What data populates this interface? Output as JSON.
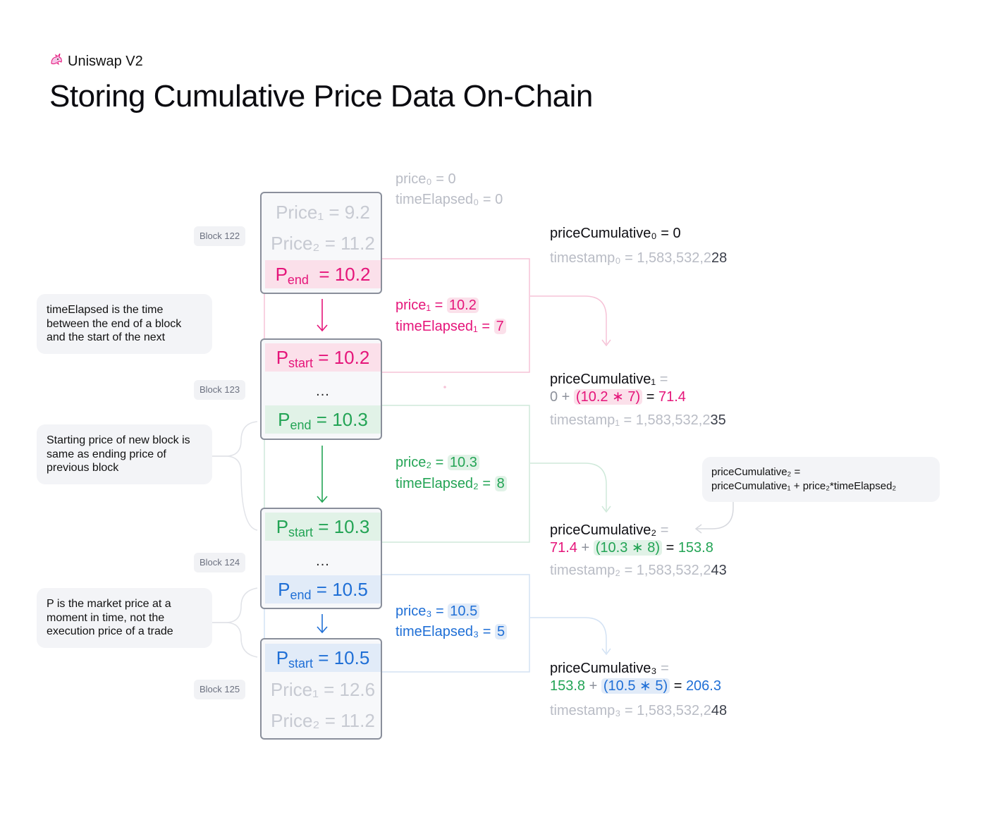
{
  "header": {
    "brand_icon": "unicorn-icon",
    "brand": "Uniswap V2",
    "title": "Storing Cumulative Price Data On-Chain"
  },
  "notes": {
    "time_elapsed": "timeElapsed is the time between the end of a block and the start of the next",
    "starting_price": "Starting price of new block is same as ending price of previous block",
    "market_price": "P is the market price at a moment in time, not the execution price of a trade",
    "formula_line1": "priceCumulative₂ =",
    "formula_line2": "priceCumulative₁ + price₂*timeElapsed₂"
  },
  "blocks": {
    "b122": "Block 122",
    "b123": "Block 123",
    "b124": "Block 124",
    "b125": "Block 125"
  },
  "rows": {
    "b122_price1": "Price₁ = 9.2",
    "b122_price2": "Price₂ = 11.2",
    "b122_pend": "10.2",
    "b123_pstart": "10.2",
    "b123_pend": "10.3",
    "b124_pstart": "10.3",
    "b124_pend": "10.5",
    "b125_pstart": "10.5",
    "b125_price1": "Price₁ = 12.6",
    "b125_price2": "Price₂ = 11.2",
    "ellipsis": "...",
    "p_letter": "P",
    "end_sub": "end",
    "start_sub": "start",
    "eq": "="
  },
  "intervals": {
    "initial_price": "price₀ = 0",
    "initial_time": "timeElapsed₀ = 0",
    "i1_price_label": "price₁ =",
    "i1_price": "10.2",
    "i1_time_label": "timeElapsed₁ =",
    "i1_time": "7",
    "i2_price_label": "price₂ =",
    "i2_price": "10.3",
    "i2_time_label": "timeElapsed₂ =",
    "i2_time": "8",
    "i3_price_label": "price₃ =",
    "i3_price": "10.5",
    "i3_time_label": "timeElapsed₃ =",
    "i3_time": "5"
  },
  "cumulative": {
    "c0_label": "priceCumulative₀ = 0",
    "c0_ts_prefix": "timestamp₀ = 1,583,532,2",
    "c0_ts_suffix": "28",
    "c1_label": "priceCumulative₁",
    "c1_eq": "=",
    "c1_base": "0 +",
    "c1_expr": "(10.2 ∗ 7)",
    "c1_eq2": "=",
    "c1_result": "71.4",
    "c1_ts_prefix": "timestamp₁ = 1,583,532,2",
    "c1_ts_suffix": "35",
    "c2_label": "priceCumulative₂",
    "c2_eq": "=",
    "c2_base": "71.4",
    "c2_plus": "+",
    "c2_expr": "(10.3 ∗ 8)",
    "c2_eq2": "=",
    "c2_result": "153.8",
    "c2_ts_prefix": "timestamp₂ = 1,583,532,2",
    "c2_ts_suffix": "43",
    "c3_label": "priceCumulative₃",
    "c3_eq": "=",
    "c3_base": "153.8",
    "c3_plus": "+",
    "c3_expr": "(10.5 ∗ 5)",
    "c3_eq2": "=",
    "c3_result": "206.3",
    "c3_ts_prefix": "timestamp₃ = 1,583,532,2",
    "c3_ts_suffix": "48"
  },
  "colors": {
    "pink": "#e5157a",
    "green": "#23a455",
    "blue": "#1f6fd6",
    "faded": "#c7cad2",
    "box_border": "#8a8f9b"
  }
}
